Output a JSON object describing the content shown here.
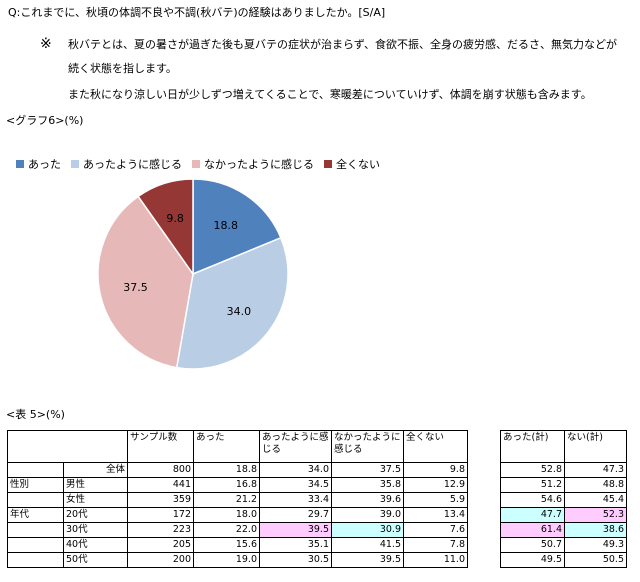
{
  "question": "Q:これまでに、秋頃の体調不良や不調(秋バテ)の経験はありましたか。[S/A]",
  "note_mark": "※",
  "note_line1": "秋バテとは、夏の暑さが過ぎた後も夏バテの症状が治まらず、食欲不振、全身の疲労感、だるさ、無気力などが",
  "note_line2": "続く状態を指します。",
  "note_line3": "また秋になり涼しい日が少しずつ増えてくることで、寒暖差についていけず、体調を崩す状態も含みます。",
  "graph_label": "<グラフ6>(%)",
  "table_label": "<表 5>(%)",
  "chart_data": {
    "type": "pie",
    "unit": "%",
    "categories": [
      "あった",
      "あったように感じる",
      "なかったように感じる",
      "全くない"
    ],
    "values": [
      18.8,
      34.0,
      37.5,
      9.8
    ],
    "value_labels": [
      "18.8",
      "34.0",
      "37.5",
      "9.8"
    ],
    "colors": [
      "#4f81bd",
      "#b9cde5",
      "#e6b9b8",
      "#953735"
    ],
    "legend_position": "top-left"
  },
  "table": {
    "headers": [
      "サンプル数",
      "あった",
      "あったように感じる",
      "なかったように感じる",
      "全くない"
    ],
    "sum_headers": [
      "あった(計)",
      "ない(計)"
    ],
    "rows": [
      {
        "group": "",
        "label": "全体",
        "n": "800",
        "v": [
          "18.8",
          "34.0",
          "37.5",
          "9.8"
        ],
        "s": [
          "52.8",
          "47.3"
        ]
      },
      {
        "group": "性別",
        "label": "男性",
        "n": "441",
        "v": [
          "16.8",
          "34.5",
          "35.8",
          "12.9"
        ],
        "s": [
          "51.2",
          "48.8"
        ]
      },
      {
        "group": "",
        "label": "女性",
        "n": "359",
        "v": [
          "21.2",
          "33.4",
          "39.6",
          "5.9"
        ],
        "s": [
          "54.6",
          "45.4"
        ]
      },
      {
        "group": "年代",
        "label": "20代",
        "n": "172",
        "v": [
          "18.0",
          "29.7",
          "39.0",
          "13.4"
        ],
        "s": [
          "47.7",
          "52.3"
        ]
      },
      {
        "group": "",
        "label": "30代",
        "n": "223",
        "v": [
          "22.0",
          "39.5",
          "30.9",
          "7.6"
        ],
        "s": [
          "61.4",
          "38.6"
        ]
      },
      {
        "group": "",
        "label": "40代",
        "n": "205",
        "v": [
          "15.6",
          "35.1",
          "41.5",
          "7.8"
        ],
        "s": [
          "50.7",
          "49.3"
        ]
      },
      {
        "group": "",
        "label": "50代",
        "n": "200",
        "v": [
          "19.0",
          "30.5",
          "39.5",
          "11.0"
        ],
        "s": [
          "49.5",
          "50.5"
        ]
      }
    ],
    "highlight_colors": {
      "pink": "#ffccff",
      "cyan": "#ccffff"
    }
  }
}
